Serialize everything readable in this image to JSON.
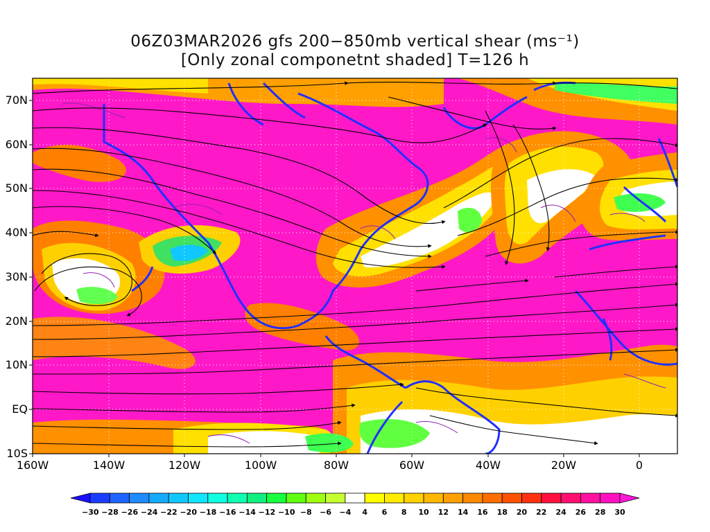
{
  "title": {
    "line1": "06Z03MAR2026 gfs 200−850mb vertical shear (ms⁻¹)",
    "line2": "[Only zonal componetnt shaded] T=126 h"
  },
  "map": {
    "lat_labels": [
      "70N",
      "60N",
      "50N",
      "40N",
      "30N",
      "20N",
      "10N",
      "EQ",
      "10S"
    ],
    "lon_labels": [
      "160W",
      "140W",
      "120W",
      "100W",
      "80W",
      "60W",
      "40W",
      "20W",
      "0"
    ],
    "lat_range": [
      -10,
      75
    ],
    "lon_range": [
      -160,
      10
    ],
    "coastline_color": "#2030ff",
    "contour_color": "#9020b0",
    "streamline_color": "#000000",
    "grid_style": "dotted white"
  },
  "colorbar": {
    "labels": [
      "−30",
      "−28",
      "−26",
      "−24",
      "−22",
      "−20",
      "−18",
      "−16",
      "−14",
      "−12",
      "−10",
      "−8",
      "−6",
      "−4",
      "4",
      "6",
      "8",
      "10",
      "12",
      "14",
      "16",
      "18",
      "20",
      "22",
      "24",
      "26",
      "28",
      "30"
    ],
    "colors": [
      "#1a10ff",
      "#1a3cff",
      "#1e64ff",
      "#1e8cff",
      "#16aaff",
      "#10c8ff",
      "#10e6ff",
      "#10ffe0",
      "#10ffb0",
      "#10f080",
      "#18ff40",
      "#60ff10",
      "#a0ff10",
      "#c8ff30",
      "#ffffff",
      "#ffff00",
      "#ffea00",
      "#ffd200",
      "#ffb800",
      "#ffa000",
      "#ff8a00",
      "#ff6e00",
      "#ff5200",
      "#ff3210",
      "#ff1040",
      "#ff1070",
      "#ff10a0",
      "#ff10c0",
      "#ff18d8"
    ]
  }
}
